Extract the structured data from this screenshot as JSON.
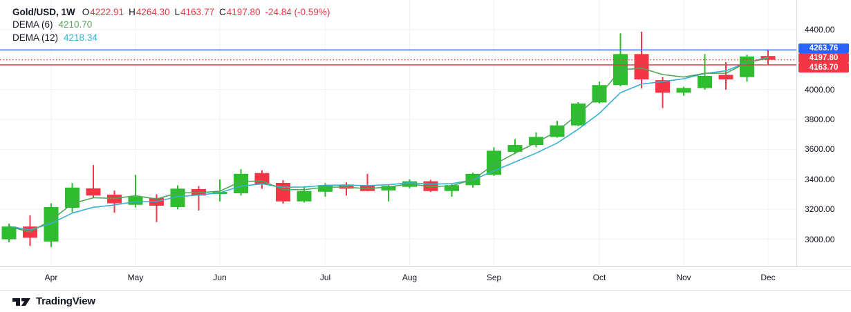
{
  "header": {
    "symbol": "Gold/USD, 1W",
    "ohlc": [
      {
        "label": "O",
        "value": "4222.91"
      },
      {
        "label": "H",
        "value": "4264.30"
      },
      {
        "label": "L",
        "value": "4163.77"
      },
      {
        "label": "C",
        "value": "4197.80"
      }
    ],
    "change": "-24.84 (-0.59%)",
    "indicators": [
      {
        "name": "DEMA (6)",
        "value": "4210.70",
        "color": "#4fa758"
      },
      {
        "name": "DEMA (12)",
        "value": "4218.34",
        "color": "#35b1d1"
      }
    ]
  },
  "chart_data": {
    "type": "candlestick",
    "symbol": "Gold/USD",
    "interval": "1W",
    "up_color": "#2ebd2e",
    "down_color": "#f23645",
    "grid": true,
    "background": "#ffffff",
    "ohlc_format": [
      "open",
      "high",
      "low",
      "close"
    ],
    "candles": [
      [
        3000,
        3105,
        2980,
        3085
      ],
      [
        3085,
        3160,
        2955,
        3010
      ],
      [
        2985,
        3240,
        2948,
        3215
      ],
      [
        3210,
        3375,
        3180,
        3345
      ],
      [
        3340,
        3495,
        3278,
        3292
      ],
      [
        3298,
        3325,
        3177,
        3240
      ],
      [
        3230,
        3430,
        3212,
        3285
      ],
      [
        3276,
        3300,
        3115,
        3224
      ],
      [
        3215,
        3360,
        3200,
        3338
      ],
      [
        3335,
        3355,
        3192,
        3292
      ],
      [
        3302,
        3400,
        3253,
        3316
      ],
      [
        3307,
        3468,
        3292,
        3437
      ],
      [
        3442,
        3460,
        3337,
        3368
      ],
      [
        3376,
        3395,
        3238,
        3253
      ],
      [
        3253,
        3353,
        3245,
        3322
      ],
      [
        3317,
        3375,
        3284,
        3361
      ],
      [
        3365,
        3380,
        3292,
        3338
      ],
      [
        3356,
        3437,
        3320,
        3322
      ],
      [
        3326,
        3360,
        3253,
        3356
      ],
      [
        3350,
        3400,
        3340,
        3387
      ],
      [
        3387,
        3397,
        3315,
        3322
      ],
      [
        3322,
        3370,
        3284,
        3361
      ],
      [
        3361,
        3445,
        3345,
        3437
      ],
      [
        3430,
        3614,
        3423,
        3591
      ],
      [
        3583,
        3668,
        3568,
        3629
      ],
      [
        3629,
        3714,
        3614,
        3683
      ],
      [
        3683,
        3791,
        3678,
        3760
      ],
      [
        3760,
        3915,
        3755,
        3906
      ],
      [
        3913,
        4052,
        3906,
        4029
      ],
      [
        4029,
        4374,
        4021,
        4236
      ],
      [
        4236,
        4385,
        4006,
        4067
      ],
      [
        4062,
        4082,
        3875,
        3978
      ],
      [
        3978,
        4018,
        3958,
        4009
      ],
      [
        4009,
        4236,
        3998,
        4090
      ],
      [
        4097,
        4182,
        3998,
        4067
      ],
      [
        4082,
        4231,
        4052,
        4220
      ],
      [
        4222.91,
        4264.3,
        4163.77,
        4197.8
      ]
    ],
    "months": [
      {
        "label": "Apr",
        "candle_index": 2
      },
      {
        "label": "May",
        "candle_index": 6
      },
      {
        "label": "Jun",
        "candle_index": 10
      },
      {
        "label": "Jul",
        "candle_index": 15
      },
      {
        "label": "Aug",
        "candle_index": 19
      },
      {
        "label": "Sep",
        "candle_index": 23
      },
      {
        "label": "Oct",
        "candle_index": 28
      },
      {
        "label": "Nov",
        "candle_index": 32
      },
      {
        "label": "Dec",
        "candle_index": 36
      }
    ],
    "y_axis": {
      "ticks": [
        4400,
        4200,
        4000,
        3800,
        3600,
        3400,
        3200,
        3000
      ],
      "visible_labels": [
        "4400.00",
        "4000.00",
        "3800.00",
        "3600.00",
        "3400.00",
        "3200.00",
        "3000.00"
      ],
      "range": [
        2840,
        4480
      ]
    },
    "overlays": [
      {
        "name": "DEMA",
        "period": 6,
        "color": "#4fa758",
        "last_value": 4210.7
      },
      {
        "name": "DEMA",
        "period": 12,
        "color": "#35b1d1",
        "last_value": 4218.34
      }
    ],
    "levels": [
      {
        "price": 4263.76,
        "label": "4263.76",
        "line_color": "#2962ff",
        "badge_color": "#2962ff",
        "style": "solid"
      },
      {
        "price": 4197.8,
        "label": "4197.80",
        "line_color": "#f23645",
        "badge_color": "#f23645",
        "style": "dotted"
      },
      {
        "price": 4163.7,
        "label": "4163.70",
        "line_color": "#c94848",
        "badge_color": "#f23645",
        "style": "solid"
      }
    ]
  },
  "footer": {
    "brand": "TradingView"
  }
}
